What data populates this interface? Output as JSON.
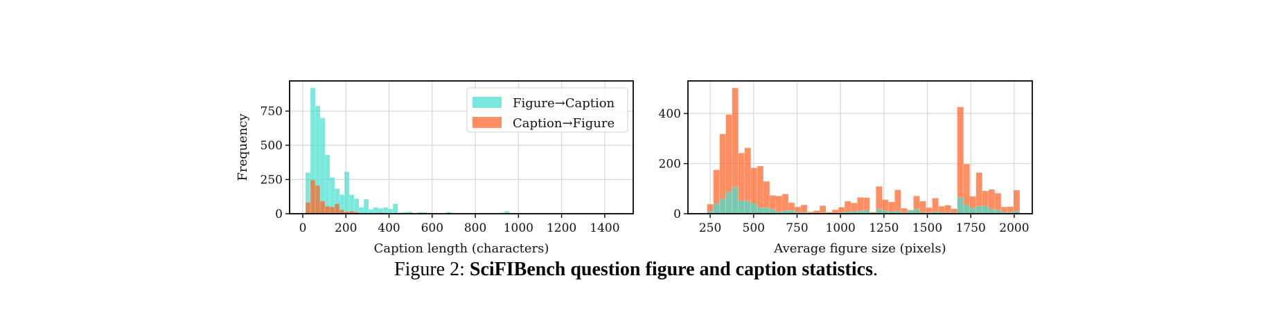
{
  "caption": {
    "prefix": "Figure 2: ",
    "bold": "SciFIBench question figure and caption statistics",
    "suffix": "."
  },
  "colors": {
    "figure_to_caption": "#40e0d0",
    "caption_to_figure": "#ff5f1f",
    "alpha_left_teal": 0.7,
    "alpha_left_orange": 0.7,
    "grid": "#d9d9d9"
  },
  "chart_data": [
    {
      "type": "bar",
      "subtype": "overlapping-histogram",
      "title": "",
      "xlabel": "Caption length (characters)",
      "ylabel": "Frequency",
      "xlim": [
        -61,
        1532
      ],
      "ylim": [
        0,
        970
      ],
      "xticks": [
        0,
        200,
        400,
        600,
        800,
        1000,
        1200,
        1400
      ],
      "yticks": [
        0,
        250,
        500,
        750
      ],
      "grid": true,
      "legend": {
        "position": "upper right",
        "entries": [
          "Figure→Caption",
          "Caption→Figure"
        ]
      },
      "bin_start": 13,
      "bin_width": 22.5,
      "series": [
        {
          "name": "Figure→Caption",
          "values": [
            301,
            919,
            787,
            699,
            429,
            265,
            184,
            139,
            306,
            139,
            110,
            47,
            106,
            32,
            46,
            39,
            46,
            35,
            73,
            8,
            12,
            14,
            4,
            10,
            10,
            3,
            3,
            2,
            4,
            12,
            3,
            0,
            2,
            2,
            4,
            2,
            0,
            2,
            0,
            4,
            7,
            18
          ]
        },
        {
          "name": "Caption→Figure",
          "values": [
            83,
            245,
            206,
            93,
            54,
            51,
            73,
            29,
            15,
            19,
            12,
            5,
            3,
            2,
            2,
            8,
            3,
            2,
            1,
            0,
            1,
            0,
            0,
            0,
            0,
            0,
            0,
            0,
            0,
            0,
            0,
            0,
            0,
            0,
            0,
            0,
            0,
            0,
            0,
            0,
            0,
            0
          ]
        }
      ]
    },
    {
      "type": "bar",
      "subtype": "overlapping-histogram",
      "title": "",
      "xlabel": "Average figure size (pixels)",
      "ylabel": "",
      "xlim": [
        122,
        2104
      ],
      "ylim": [
        0,
        530
      ],
      "xticks": [
        250,
        500,
        750,
        1000,
        1250,
        1500,
        1750,
        2000
      ],
      "yticks": [
        0,
        200,
        400
      ],
      "grid": true,
      "bin_start": 196,
      "bin_width": 36,
      "series": [
        {
          "name": "Caption→Figure",
          "values": [
            3,
            38,
            175,
            318,
            396,
            502,
            242,
            263,
            183,
            190,
            129,
            73,
            71,
            79,
            44,
            27,
            35,
            7,
            12,
            32,
            6,
            16,
            26,
            50,
            43,
            65,
            64,
            6,
            109,
            56,
            47,
            95,
            22,
            15,
            71,
            50,
            24,
            62,
            30,
            34,
            20,
            426,
            198,
            69,
            164,
            91,
            97,
            82,
            27,
            28,
            94
          ]
        },
        {
          "name": "Figure→Caption",
          "values": [
            0,
            10,
            39,
            59,
            87,
            106,
            52,
            51,
            40,
            24,
            24,
            18,
            8,
            13,
            13,
            6,
            5,
            2,
            3,
            4,
            2,
            3,
            5,
            8,
            9,
            12,
            14,
            2,
            18,
            12,
            8,
            11,
            4,
            13,
            19,
            6,
            5,
            8,
            5,
            5,
            4,
            64,
            36,
            22,
            30,
            31,
            18,
            15,
            6,
            6,
            11
          ]
        }
      ]
    }
  ]
}
